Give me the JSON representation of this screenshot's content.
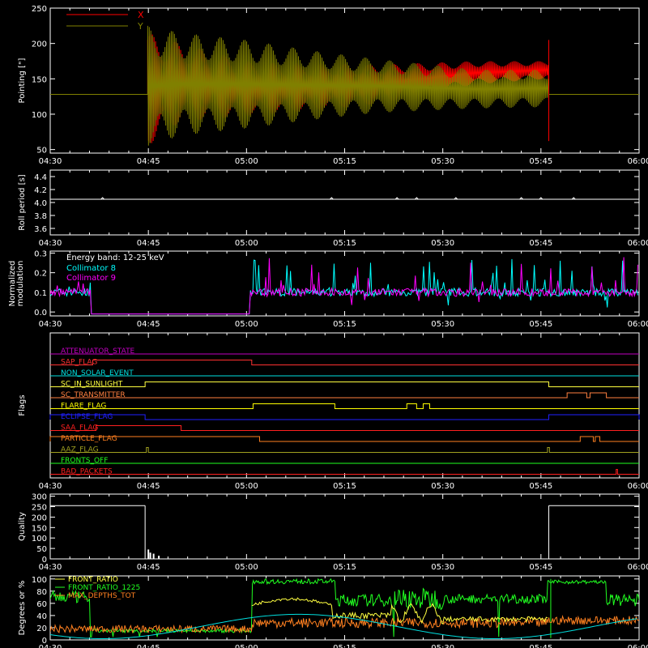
{
  "time_ticks": [
    "04:30",
    "04:45",
    "05:00",
    "05:15",
    "05:30",
    "05:45",
    "06:00"
  ],
  "time_range_min": [
    270,
    360
  ],
  "chart_data": [
    {
      "type": "line",
      "ylabel": "Pointing [\"]",
      "ylim": [
        45,
        250
      ],
      "yticks": [
        50,
        100,
        150,
        200,
        250
      ],
      "legend": [
        {
          "label": "X",
          "color": "#ff0000"
        },
        {
          "label": "Y",
          "color": "#808000"
        }
      ],
      "series": [
        {
          "name": "X",
          "color": "#ff0000",
          "before": 128,
          "envelope": [
            [
              284.9,
              55,
              215
            ],
            [
              290,
              90,
              200
            ],
            [
              300,
              97,
              175
            ],
            [
              310,
              104,
              172
            ],
            [
              320,
              115,
              170
            ],
            [
              335,
              142,
              175
            ],
            [
              346,
              150,
              175
            ]
          ],
          "after": 128
        },
        {
          "name": "Y",
          "color": "#808000",
          "before": 128,
          "envelope": [
            [
              284.9,
              55,
              225
            ],
            [
              290,
              70,
              215
            ],
            [
              300,
              80,
              205
            ],
            [
              310,
              92,
              190
            ],
            [
              320,
              102,
              178
            ],
            [
              335,
              108,
              163
            ],
            [
              346,
              110,
              163
            ]
          ],
          "after": 128
        }
      ],
      "event_start": 284.9,
      "event_end": 346.2
    },
    {
      "type": "line",
      "ylabel": "Roll period [s]",
      "ylim": [
        3.5,
        4.5
      ],
      "yticks": [
        3.6,
        3.8,
        4.0,
        4.2,
        4.4
      ],
      "ytick_labels": [
        "3.6",
        "3.8",
        "4.0",
        "4.2",
        "4.4"
      ],
      "series": [
        {
          "name": "roll",
          "color": "#ffffff",
          "value": 4.05,
          "spikes": [
            278,
            313,
            323,
            326,
            332,
            342,
            345,
            350
          ]
        }
      ]
    },
    {
      "type": "line",
      "ylabel": "Normalized modulation",
      "ylabel_lines": [
        "Normalized",
        "modulation"
      ],
      "ylim": [
        -0.02,
        0.31
      ],
      "yticks": [
        0.0,
        0.1,
        0.2,
        0.3
      ],
      "ytick_labels": [
        "0.0",
        "0.1",
        "0.2",
        "0.3"
      ],
      "annotation": "Energy band: 12-25 keV",
      "series": [
        {
          "name": "Collimator 8",
          "color": "#00ffff",
          "base": 0.1,
          "active_ranges": [
            [
              270,
              276.2
            ],
            [
              300.6,
              360
            ]
          ],
          "noise": 0.05
        },
        {
          "name": "Collimator 9",
          "color": "#ff00ff",
          "base": 0.1,
          "active_ranges": [
            [
              270,
              276.2
            ],
            [
              300.6,
              360
            ]
          ],
          "noise": 0.05
        }
      ],
      "gap_value": -0.01
    },
    {
      "type": "line",
      "ylabel": "Flags",
      "flags": [
        {
          "name": "ATTENUATOR_STATE",
          "color": "#c000c0",
          "toggles": []
        },
        {
          "name": "SAP_FLAG",
          "color": "#ff3030",
          "toggles": [
            [
              276.5,
              300.8
            ]
          ]
        },
        {
          "name": "NON_SOLAR_EVENT",
          "color": "#00e0e0",
          "toggles": []
        },
        {
          "name": "SC_IN_SUNLIGHT",
          "color": "#ffff40",
          "toggles": [
            [
              284.5,
              346.2
            ]
          ]
        },
        {
          "name": "SC_TRANSMITTER",
          "color": "#ff8040",
          "toggles": [
            [
              349,
              352
            ],
            [
              352.5,
              355
            ]
          ]
        },
        {
          "name": "FLARE_FLAG",
          "color": "#ffff00",
          "toggles": [
            [
              301,
              313.5
            ],
            [
              324.5,
              326
            ],
            [
              327,
              328
            ]
          ]
        },
        {
          "name": "ECLIPSE_FLAG",
          "color": "#2020ff",
          "toggles": [
            [
              270,
              284.5
            ],
            [
              346.2,
              360
            ]
          ]
        },
        {
          "name": "SAA_FLAG",
          "color": "#ff2020",
          "toggles": [
            [
              277,
              290
            ]
          ]
        },
        {
          "name": "PARTICLE_FLAG",
          "color": "#ff8020",
          "toggles": [
            [
              270,
              302
            ],
            [
              351,
              353
            ],
            [
              353.3,
              354
            ]
          ]
        },
        {
          "name": "AAZ_FLAG",
          "color": "#a0a020",
          "toggles": [
            [
              284.7,
              285.0
            ],
            [
              346.0,
              346.3
            ]
          ]
        },
        {
          "name": "FRONTS_OFF",
          "color": "#20ff20",
          "toggles": []
        },
        {
          "name": "BAD_PACKETS",
          "color": "#ff2020",
          "toggles": [
            [
              356.5,
              356.7
            ]
          ]
        }
      ]
    },
    {
      "type": "line",
      "ylabel": "Quality",
      "ylim": [
        0,
        310
      ],
      "yticks": [
        0,
        50,
        100,
        150,
        200,
        250,
        300
      ],
      "ytick_labels": [
        "0",
        "50",
        "100",
        "150",
        "200",
        "250",
        "300"
      ],
      "series": [
        {
          "name": "quality",
          "color": "#ffffff",
          "segments": [
            [
              270,
              284.5,
              255
            ],
            [
              346.2,
              360,
              255
            ]
          ],
          "spikes": [
            [
              285.0,
              45
            ],
            [
              285.3,
              30
            ],
            [
              285.8,
              25
            ],
            [
              286.6,
              15
            ]
          ]
        }
      ]
    },
    {
      "type": "line",
      "ylabel": "Degrees or %",
      "ylim": [
        0,
        105
      ],
      "yticks": [
        0,
        20,
        40,
        60,
        80,
        100
      ],
      "ytick_labels": [
        "0",
        "20",
        "40",
        "60",
        "80",
        "100"
      ],
      "legend": [
        {
          "label": "FRONT_RATIO",
          "color": "#ffff40"
        },
        {
          "label": "FRONT_RATIO_1225",
          "color": "#20ff20"
        },
        {
          "label": "MAX_DEPTHS_TOT",
          "color": "#ff8020"
        }
      ],
      "series": [
        {
          "name": "FRONT_RATIO",
          "color": "#ffff40"
        },
        {
          "name": "FRONT_RATIO_1225",
          "color": "#20ff20"
        },
        {
          "name": "MAX_DEPTHS_TOT",
          "color": "#ff8020"
        },
        {
          "name": "cyan",
          "color": "#00e0e0"
        }
      ]
    }
  ]
}
